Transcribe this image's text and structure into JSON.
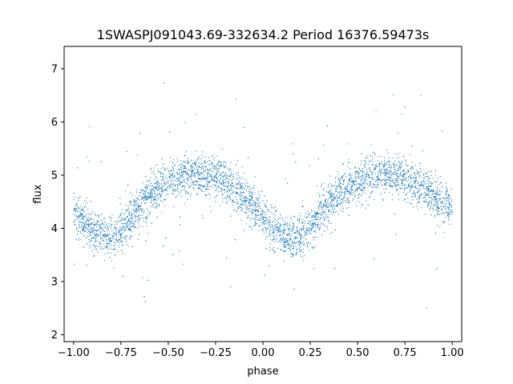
{
  "chart_data": {
    "type": "scatter",
    "title": "1SWASPJ091043.69-332634.2 Period 16376.59473s",
    "xlabel": "phase",
    "ylabel": "flux",
    "xlim": [
      -1.05,
      1.05
    ],
    "ylim": [
      1.87,
      7.42
    ],
    "x_ticks": [
      -1.0,
      -0.75,
      -0.5,
      -0.25,
      0.0,
      0.25,
      0.5,
      0.75,
      1.0
    ],
    "x_tick_labels": [
      "−1.00",
      "−0.75",
      "−0.50",
      "−0.25",
      "0.00",
      "0.25",
      "0.50",
      "0.75",
      "1.00"
    ],
    "y_ticks": [
      2,
      3,
      4,
      5,
      6,
      7
    ],
    "y_tick_labels": [
      "2",
      "3",
      "4",
      "5",
      "6",
      "7"
    ],
    "grid": false,
    "legend": "none",
    "marker_color": "#1f77b4",
    "series": [
      {
        "x": [
          -1.0,
          -0.95,
          -0.9,
          -0.85,
          -0.8,
          -0.75,
          -0.7,
          -0.65,
          -0.6,
          -0.55,
          -0.5,
          -0.45,
          -0.4,
          -0.35,
          -0.3,
          -0.25,
          -0.2,
          -0.15,
          -0.1,
          -0.05,
          0.0,
          0.05,
          0.1,
          0.15,
          0.2,
          0.25,
          0.3,
          0.35,
          0.4,
          0.45,
          0.5,
          0.55,
          0.6,
          0.65,
          0.7,
          0.75,
          0.8,
          0.85,
          0.9,
          0.95,
          1.0
        ],
        "y": [
          4.35,
          4.1,
          3.95,
          3.88,
          3.82,
          3.95,
          4.2,
          4.4,
          4.6,
          4.75,
          4.85,
          4.95,
          5.0,
          5.02,
          5.0,
          4.95,
          4.85,
          4.75,
          4.6,
          4.4,
          4.2,
          4.0,
          3.85,
          3.8,
          3.85,
          4.05,
          4.3,
          4.5,
          4.65,
          4.8,
          4.88,
          4.95,
          5.0,
          5.02,
          5.0,
          4.95,
          4.85,
          4.75,
          4.6,
          4.45,
          4.35
        ]
      }
    ]
  }
}
